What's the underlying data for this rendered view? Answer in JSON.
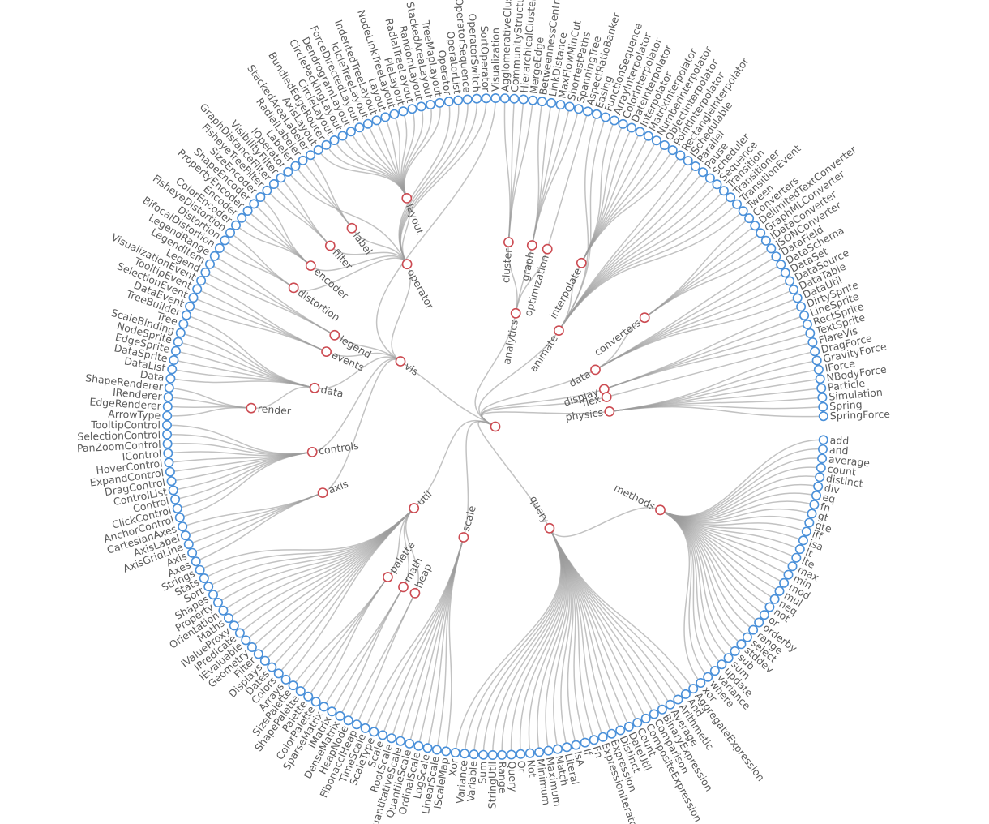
{
  "colors": {
    "leaf_stroke": "#4a90d9",
    "internal_stroke": "#cc4b52",
    "link": "#9c9c9c",
    "label": "#5b5b5b"
  },
  "tree": {
    "name": "",
    "children": [
      {
        "name": "query",
        "children": [
          {
            "name": "methods",
            "children": [
              "add",
              "and",
              "average",
              "count",
              "distinct",
              "div",
              "eq",
              "fn",
              "gt",
              "gte",
              "iff",
              "isa",
              "lt",
              "lte",
              "max",
              "min",
              "mod",
              "mul",
              "neq",
              "not",
              "or",
              "orderby",
              "range",
              "select",
              "stddev",
              "sub",
              "sum",
              "update",
              "variance",
              "where",
              "xor"
            ]
          },
          "AggregateExpression",
          "And",
          "Arithmetic",
          "Average",
          "BinaryExpression",
          "Comparison",
          "CompositeExpression",
          "Count",
          "DateUtil",
          "Distinct",
          "Expression",
          "ExpressionIterator",
          "Fn",
          "If",
          "IsA",
          "Literal",
          "Match",
          "Maximum",
          "Minimum",
          "Not",
          "Or",
          "Query",
          "Range",
          "StringUtil",
          "Sum",
          "Variable",
          "Variance",
          "Xor"
        ]
      },
      {
        "name": "scale",
        "children": [
          "IScaleMap",
          "LinearScale",
          "LogScale",
          "OrdinalScale",
          "QuantileScale",
          "QuantitativeScale",
          "RootScale",
          "Scale",
          "ScaleType",
          "TimeScale"
        ]
      },
      {
        "name": "util",
        "children": [
          {
            "name": "heap",
            "children": [
              "FibonacciHeap",
              "HeapNode"
            ]
          },
          {
            "name": "math",
            "children": [
              "DenseMatrix",
              "IMatrix",
              "SparseMatrix"
            ]
          },
          {
            "name": "palette",
            "children": [
              "ColorPalette",
              "Palette",
              "ShapePalette",
              "SizePalette"
            ]
          },
          "Arrays",
          "Colors",
          "Dates",
          "Displays",
          "Filter",
          "Geometry",
          "IEvaluable",
          "IPredicate",
          "IValueProxy",
          "Maths",
          "Orientation",
          "Property",
          "Shapes",
          "Sort",
          "Stats",
          "Strings"
        ]
      },
      {
        "name": "vis",
        "children": [
          {
            "name": "axis",
            "children": [
              "Axes",
              "Axis",
              "AxisGridLine",
              "AxisLabel",
              "CartesianAxes"
            ]
          },
          {
            "name": "controls",
            "children": [
              "AnchorControl",
              "ClickControl",
              "Control",
              "ControlList",
              "DragControl",
              "ExpandControl",
              "HoverControl",
              "IControl",
              "PanZoomControl",
              "SelectionControl",
              "TooltipControl"
            ]
          },
          {
            "name": "data",
            "children": [
              {
                "name": "render",
                "children": [
                  "ArrowType",
                  "EdgeRenderer",
                  "IRenderer",
                  "ShapeRenderer"
                ]
              },
              "Data",
              "DataList",
              "DataSprite",
              "EdgeSprite",
              "NodeSprite",
              "ScaleBinding",
              "Tree",
              "TreeBuilder"
            ]
          },
          {
            "name": "events",
            "children": [
              "DataEvent",
              "SelectionEvent",
              "TooltipEvent",
              "VisualizationEvent"
            ]
          },
          {
            "name": "legend",
            "children": [
              "Legend",
              "LegendItem",
              "LegendRange"
            ]
          },
          {
            "name": "operator",
            "children": [
              {
                "name": "distortion",
                "children": [
                  "BifocalDistortion",
                  "Distortion",
                  "FisheyeDistortion"
                ]
              },
              {
                "name": "encoder",
                "children": [
                  "ColorEncoder",
                  "Encoder",
                  "PropertyEncoder",
                  "ShapeEncoder",
                  "SizeEncoder"
                ]
              },
              {
                "name": "filter",
                "children": [
                  "FisheyeTreeFilter",
                  "GraphDistanceFilter",
                  "VisibilityFilter"
                ]
              },
              "IOperator",
              {
                "name": "label",
                "children": [
                  "Labeler",
                  "RadialLabeler",
                  "StackedAreaLabeler"
                ]
              },
              {
                "name": "layout",
                "children": [
                  "AxisLayout",
                  "BundledEdgeRouter",
                  "CircleLayout",
                  "CirclePackingLayout",
                  "DendrogramLayout",
                  "ForceDirectedLayout",
                  "IcicleTreeLayout",
                  "IndentedTreeLayout",
                  "Layout",
                  "NodeLinkTreeLayout",
                  "PieLayout",
                  "RadialTreeLayout",
                  "RandomLayout",
                  "StackedAreaLayout",
                  "TreeMapLayout"
                ]
              },
              "Operator",
              "OperatorList",
              "OperatorSequence",
              "OperatorSwitch",
              "SortOperator"
            ]
          },
          "Visualization"
        ]
      },
      {
        "name": "analytics",
        "children": [
          {
            "name": "cluster",
            "children": [
              "AgglomerativeCluster",
              "CommunityStructure",
              "HierarchicalCluster",
              "MergeEdge"
            ]
          },
          {
            "name": "graph",
            "children": [
              "BetweennessCentrality",
              "LinkDistance",
              "MaxFlowMinCut",
              "ShortestPaths",
              "SpanningTree"
            ]
          },
          {
            "name": "optimization",
            "children": [
              "AspectRatioBanker"
            ]
          }
        ]
      },
      {
        "name": "animate",
        "children": [
          "Easing",
          "FunctionSequence",
          {
            "name": "interpolate",
            "children": [
              "ArrayInterpolator",
              "ColorInterpolator",
              "DateInterpolator",
              "Interpolator",
              "MatrixInterpolator",
              "NumberInterpolator",
              "ObjectInterpolator",
              "PointInterpolator",
              "RectangleInterpolator"
            ]
          },
          "ISchedulable",
          "Parallel",
          "Pause",
          "Scheduler",
          "Sequence",
          "Transition",
          "Transitioner",
          "TransitionEvent",
          "Tween"
        ]
      },
      {
        "name": "data",
        "children": [
          {
            "name": "converters",
            "children": [
              "Converters",
              "DelimitedTextConverter",
              "GraphMLConverter",
              "IDataConverter",
              "JSONConverter"
            ]
          },
          "DataField",
          "DataSchema",
          "DataSet",
          "DataSource",
          "DataTable",
          "DataUtil"
        ]
      },
      {
        "name": "display",
        "children": [
          "DirtySprite",
          "LineSprite",
          "RectSprite",
          "TextSprite"
        ]
      },
      {
        "name": "flex",
        "children": [
          "FlareVis"
        ]
      },
      {
        "name": "physics",
        "children": [
          "DragForce",
          "GravityForce",
          "IForce",
          "NBodyForce",
          "Particle",
          "Simulation",
          "Spring",
          "SpringForce"
        ]
      }
    ]
  }
}
